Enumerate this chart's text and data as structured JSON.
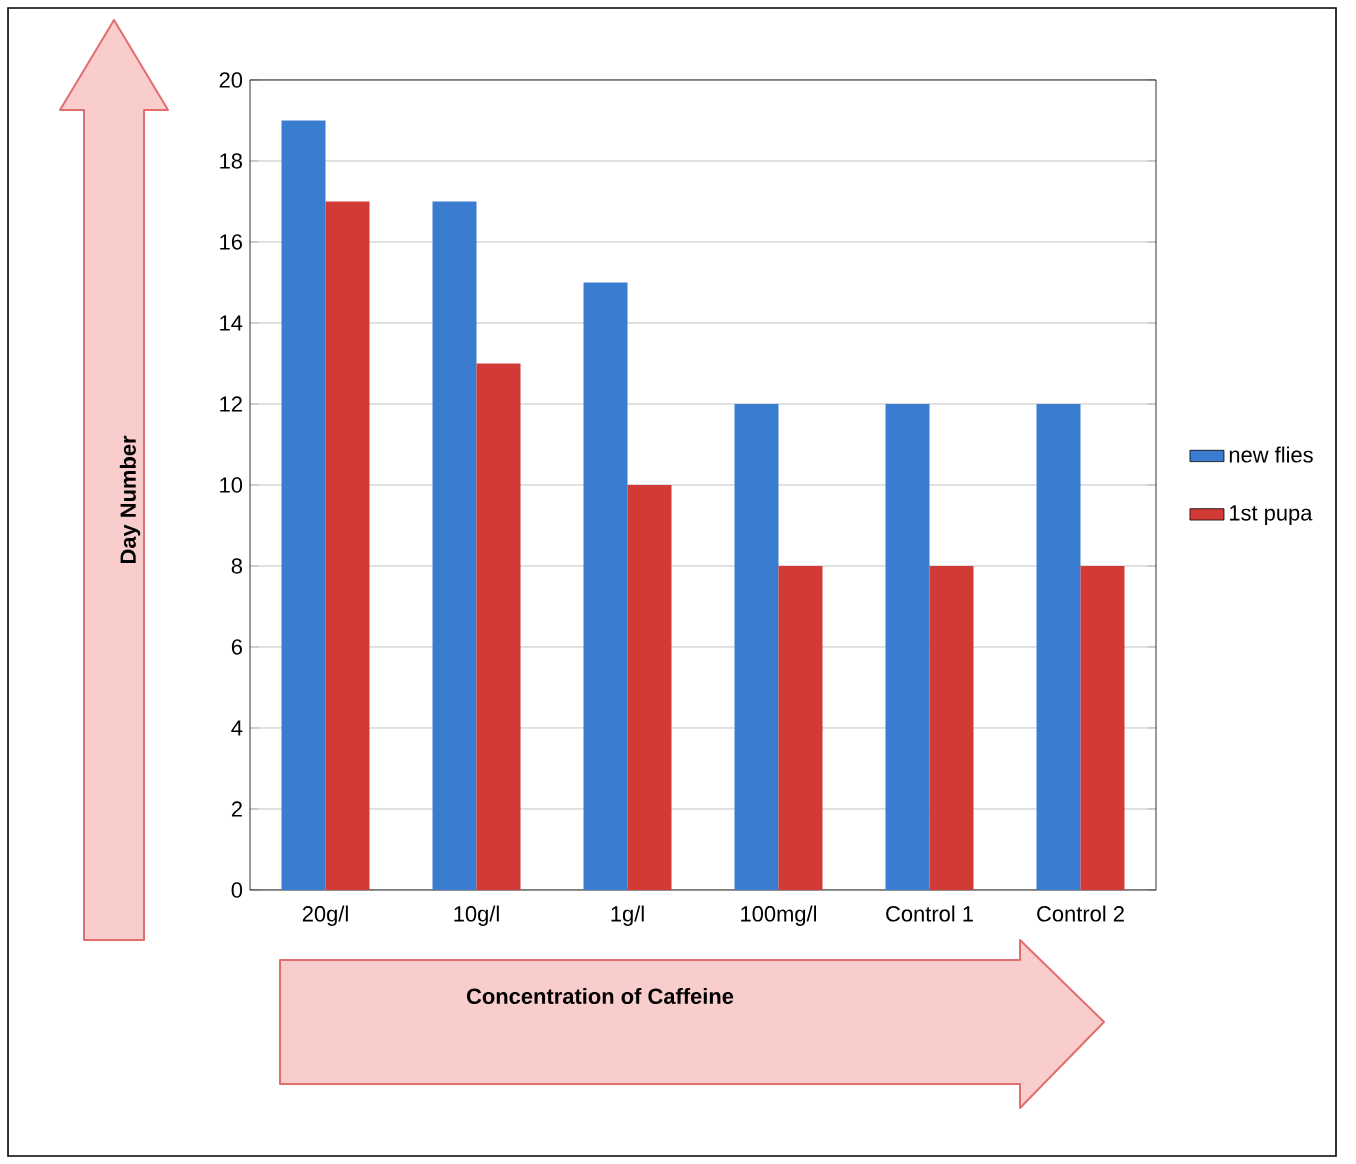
{
  "chart_data": {
    "type": "bar",
    "xlabel": "Concentration of Caffeine",
    "ylabel": "Day Number",
    "categories": [
      "20g/l",
      "10g/l",
      "1g/l",
      "100mg/l",
      "Control 1",
      "Control 2"
    ],
    "series": [
      {
        "name": "new flies",
        "color": "#3a7dd0",
        "values": [
          19,
          17,
          15,
          12,
          12,
          12
        ]
      },
      {
        "name": "1st pupa",
        "color": "#d23a36",
        "values": [
          17,
          13,
          10,
          8,
          8,
          8
        ]
      }
    ],
    "ylim": [
      0,
      20
    ],
    "yticks": [
      0,
      2,
      4,
      6,
      8,
      10,
      12,
      14,
      16,
      18,
      20
    ],
    "grid": "y",
    "legend": "right"
  }
}
